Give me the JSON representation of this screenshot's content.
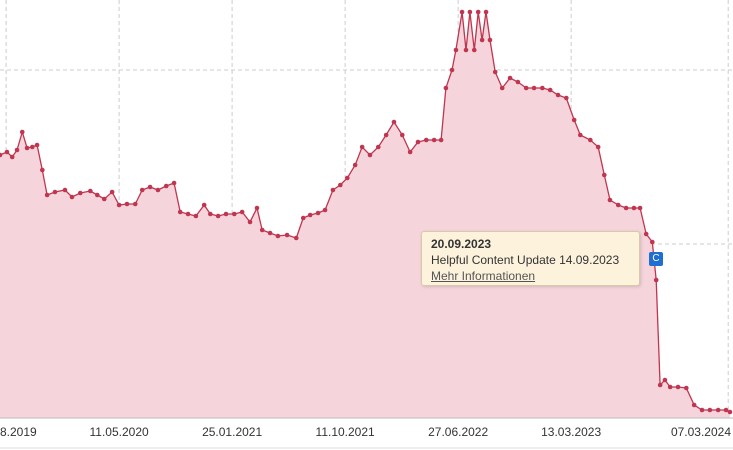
{
  "chart_data": {
    "type": "area",
    "xlim": [
      -273,
      1407
    ],
    "ylim": [
      0,
      418
    ],
    "xticks": [
      {
        "value": -259,
        "label": "8.2019"
      },
      {
        "value": 0,
        "label": "11.05.2020"
      },
      {
        "value": 259,
        "label": "25.01.2021"
      },
      {
        "value": 518,
        "label": "11.10.2021"
      },
      {
        "value": 777,
        "label": "27.06.2022"
      },
      {
        "value": 1036,
        "label": "13.03.2023"
      },
      {
        "value": 1396,
        "label": "07.03.2024"
      }
    ],
    "yticks": [
      174,
      348
    ],
    "grid": true,
    "series": [
      {
        "color": "#c0354f",
        "x": [
          -273,
          -257,
          -245,
          -234,
          -222,
          -211,
          -199,
          -188,
          -176,
          -165,
          -147,
          -124,
          -108,
          -89,
          -66,
          -50,
          -34,
          -16,
          0,
          18,
          37,
          53,
          71,
          89,
          108,
          126,
          140,
          158,
          176,
          195,
          209,
          227,
          245,
          264,
          282,
          300,
          316,
          328,
          346,
          364,
          385,
          406,
          422,
          438,
          456,
          472,
          490,
          507,
          523,
          541,
          557,
          575,
          594,
          612,
          630,
          649,
          667,
          685,
          704,
          722,
          738,
          749,
          763,
          772,
          786,
          795,
          804,
          814,
          823,
          832,
          841,
          850,
          862,
          878,
          896,
          914,
          933,
          951,
          970,
          988,
          1006,
          1025,
          1043,
          1057,
          1080,
          1098,
          1112,
          1125,
          1144,
          1162,
          1180,
          1194,
          1208,
          1222,
          1231,
          1240,
          1251,
          1263,
          1281,
          1300,
          1318,
          1336,
          1354,
          1373,
          1391,
          1400
        ],
        "values": [
          263,
          266,
          261,
          268,
          286,
          270,
          271,
          273,
          248,
          223,
          226,
          228,
          221,
          225,
          227,
          223,
          219,
          226,
          213,
          214,
          214,
          228,
          231,
          228,
          232,
          235,
          206,
          204,
          202,
          213,
          204,
          202,
          204,
          204,
          206,
          196,
          210,
          188,
          185,
          182,
          183,
          180,
          200,
          203,
          205,
          208,
          228,
          233,
          240,
          253,
          271,
          263,
          271,
          283,
          296,
          283,
          266,
          276,
          278,
          278,
          278,
          330,
          348,
          368,
          406,
          368,
          406,
          368,
          406,
          378,
          406,
          378,
          346,
          330,
          340,
          336,
          330,
          330,
          330,
          328,
          323,
          320,
          298,
          283,
          278,
          271,
          243,
          218,
          213,
          210,
          210,
          210,
          184,
          176,
          138,
          33,
          38,
          31,
          31,
          30,
          13,
          8,
          8,
          8,
          8,
          6
        ]
      }
    ],
    "annotation": {
      "date": "20.09.2023",
      "text": "Helpful Content Update 14.09.2023",
      "link": "Mehr Informationen",
      "marker": "C"
    }
  }
}
